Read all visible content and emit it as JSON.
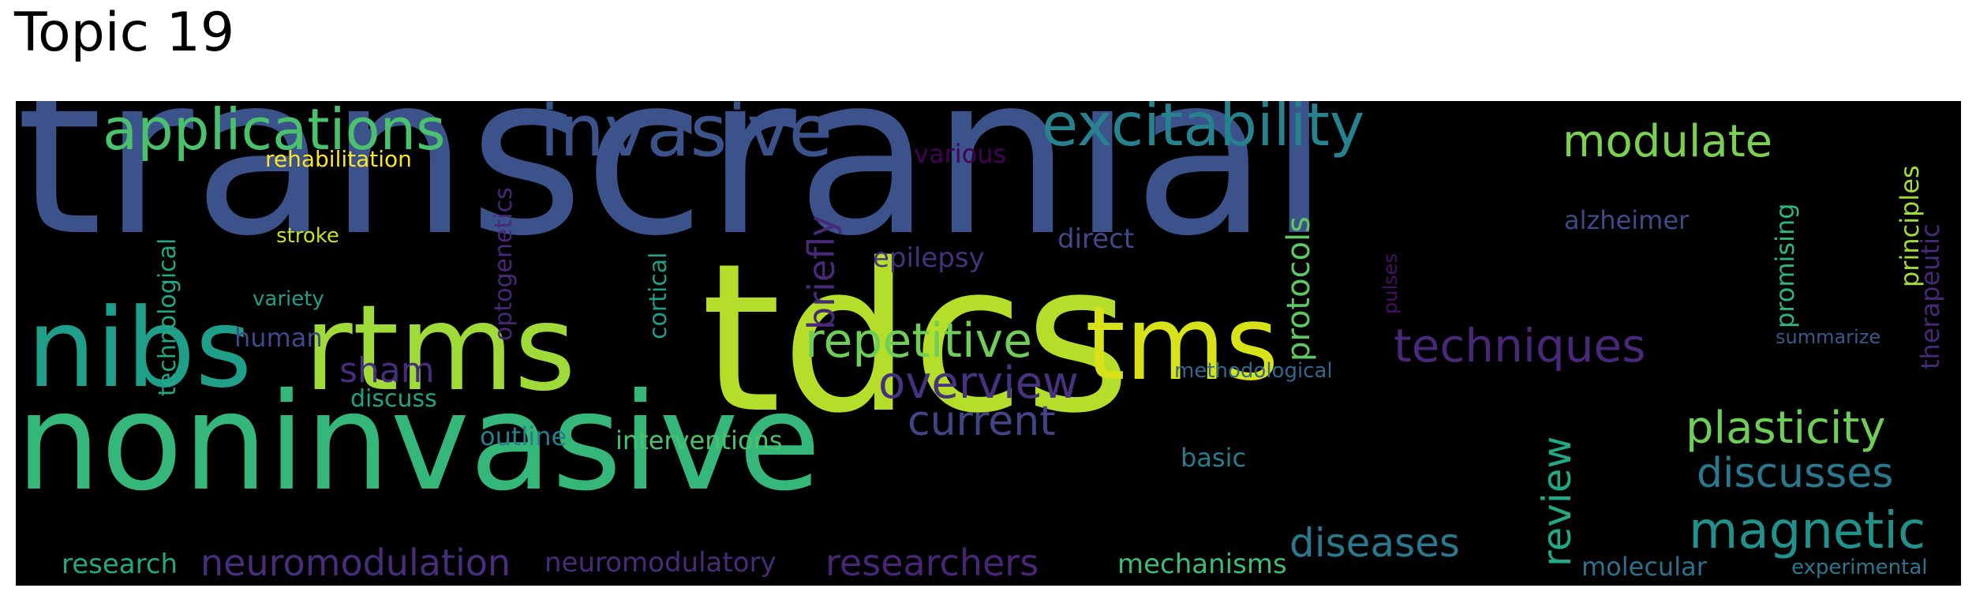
{
  "title": "Topic 19",
  "words": [
    {
      "text": "transcranial",
      "color": "#3b528b"
    },
    {
      "text": "tdcs",
      "color": "#b5de2b"
    },
    {
      "text": "noninvasive",
      "color": "#35b779"
    },
    {
      "text": "rtms",
      "color": "#a0da39"
    },
    {
      "text": "nibs",
      "color": "#1f9e89"
    },
    {
      "text": "tms",
      "color": "#d8e219"
    },
    {
      "text": "invasive",
      "color": "#3b528b"
    },
    {
      "text": "excitability",
      "color": "#26828e"
    },
    {
      "text": "applications",
      "color": "#4ac16d"
    },
    {
      "text": "modulate",
      "color": "#7ad151"
    },
    {
      "text": "repetitive",
      "color": "#6ece58"
    },
    {
      "text": "techniques",
      "color": "#482878"
    },
    {
      "text": "plasticity",
      "color": "#6ece58"
    },
    {
      "text": "discusses",
      "color": "#2a788e"
    },
    {
      "text": "magnetic",
      "color": "#21918c"
    },
    {
      "text": "overview",
      "color": "#46327e"
    },
    {
      "text": "current",
      "color": "#414487"
    },
    {
      "text": "diseases",
      "color": "#2a788e"
    },
    {
      "text": "researchers",
      "color": "#482576"
    },
    {
      "text": "neuromodulation",
      "color": "#472d7b"
    },
    {
      "text": "review",
      "color": "#22a884"
    },
    {
      "text": "protocols",
      "color": "#5ec962"
    },
    {
      "text": "briefly",
      "color": "#482878"
    },
    {
      "text": "sham",
      "color": "#472d7b"
    },
    {
      "text": "rehabilitation",
      "color": "#fde725"
    },
    {
      "text": "various",
      "color": "#440154"
    },
    {
      "text": "stroke",
      "color": "#c8e020"
    },
    {
      "text": "variety",
      "color": "#1f9e89"
    },
    {
      "text": "human",
      "color": "#3e4a89"
    },
    {
      "text": "discuss",
      "color": "#20a486"
    },
    {
      "text": "outline",
      "color": "#277f8e"
    },
    {
      "text": "interventions",
      "color": "#4ac16d"
    },
    {
      "text": "epilepsy",
      "color": "#46327e"
    },
    {
      "text": "direct",
      "color": "#3e4a89"
    },
    {
      "text": "alzheimer",
      "color": "#3e4a89"
    },
    {
      "text": "methodological",
      "color": "#31688e"
    },
    {
      "text": "basic",
      "color": "#287c8e"
    },
    {
      "text": "research",
      "color": "#22a884"
    },
    {
      "text": "neuromodulatory",
      "color": "#472c7a"
    },
    {
      "text": "mechanisms",
      "color": "#3dbc74"
    },
    {
      "text": "molecular",
      "color": "#2c728e"
    },
    {
      "text": "experimental",
      "color": "#2a788e"
    },
    {
      "text": "summarize",
      "color": "#38598c"
    },
    {
      "text": "technological",
      "color": "#22a884"
    },
    {
      "text": "optogenetics",
      "color": "#482878"
    },
    {
      "text": "cortical",
      "color": "#1f9e89"
    },
    {
      "text": "pulses",
      "color": "#471063"
    },
    {
      "text": "promising",
      "color": "#2fb47c"
    },
    {
      "text": "principles",
      "color": "#a5db36"
    },
    {
      "text": "therapeutic",
      "color": "#482878"
    }
  ]
}
